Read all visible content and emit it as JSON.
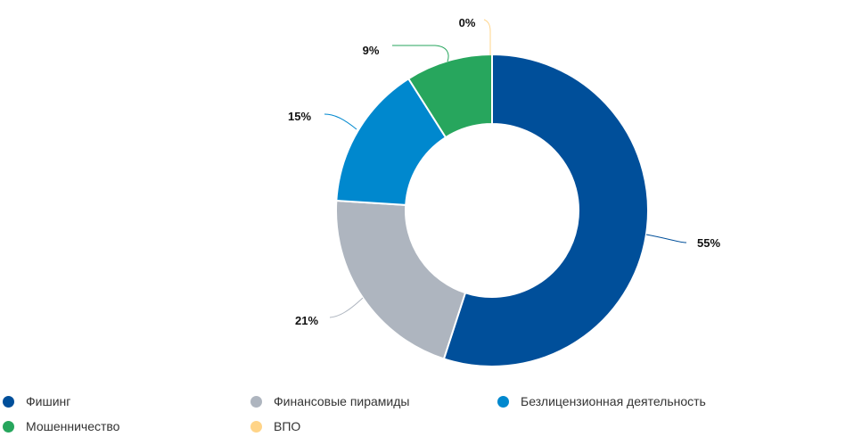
{
  "chart_data": {
    "type": "pie",
    "variant": "donut",
    "legend_position": "bottom",
    "slices": [
      {
        "name": "Фишинг",
        "value": 55,
        "label": "55%",
        "color": "#004F9A"
      },
      {
        "name": "Финансовые пирамиды",
        "value": 21,
        "label": "21%",
        "color": "#AEB5BF"
      },
      {
        "name": "Безлицензионная деятельность",
        "value": 15,
        "label": "15%",
        "color": "#0088CE"
      },
      {
        "name": "Мошенничество",
        "value": 9,
        "label": "9%",
        "color": "#27A65D"
      },
      {
        "name": "ВПО",
        "value": 0,
        "label": "0%",
        "color": "#FFD488"
      }
    ]
  }
}
